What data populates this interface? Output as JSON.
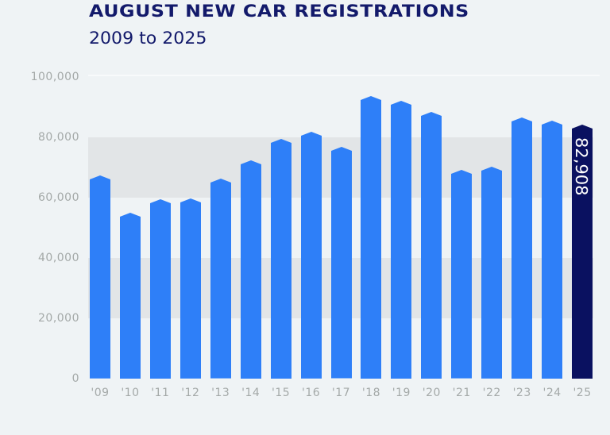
{
  "header": {
    "title": "AUGUST NEW CAR REGISTRATIONS",
    "subtitle": "2009 to 2025"
  },
  "colors": {
    "background": "#eff3f5",
    "band": "#e2e5e7",
    "bar": "#2e7ff8",
    "highlight_bar": "#0a1160",
    "title": "#131a6b",
    "axis_text": "#a4a9a8"
  },
  "highlight_label": "82,908",
  "chart_data": {
    "type": "bar",
    "title": "AUGUST NEW CAR REGISTRATIONS",
    "subtitle": "2009 to 2025",
    "xlabel": "",
    "ylabel": "",
    "categories": [
      "'09",
      "'10",
      "'11",
      "'12",
      "'13",
      "'14",
      "'15",
      "'16",
      "'17",
      "'18",
      "'19",
      "'20",
      "'21",
      "'22",
      "'23",
      "'24",
      "'25"
    ],
    "values": [
      66000,
      53700,
      58200,
      58400,
      64900,
      71100,
      78200,
      80500,
      75400,
      92400,
      90800,
      87200,
      67800,
      68900,
      85300,
      84300,
      82908
    ],
    "ylim": [
      0,
      100000
    ],
    "yticks": [
      0,
      20000,
      40000,
      60000,
      80000,
      100000
    ],
    "ytick_labels": [
      "0",
      "20,000",
      "40,000",
      "60,000",
      "80,000",
      "100,000"
    ],
    "highlight": {
      "category": "'25",
      "value": 82908,
      "label": "82,908"
    },
    "grid": "alternating horizontal bands (20k–40k and 60k–80k shaded)",
    "legend": "none"
  }
}
